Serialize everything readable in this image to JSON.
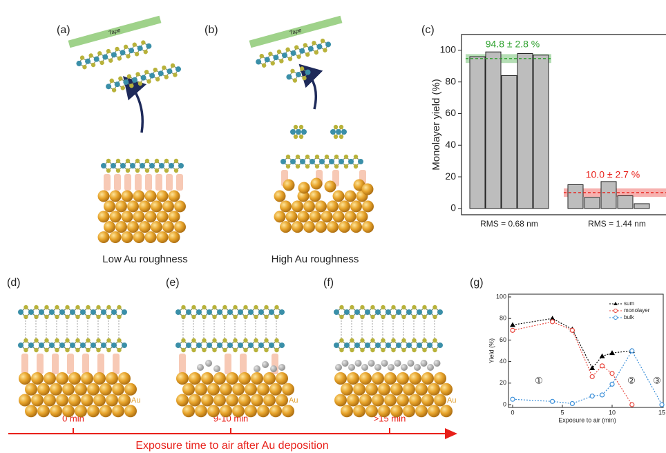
{
  "panel_labels": [
    "(a)",
    "(b)",
    "(c)",
    "(d)",
    "(e)",
    "(f)",
    "(g)"
  ],
  "diagram": {
    "tape": [
      "Tape",
      "Tape"
    ],
    "captions": [
      "Low Au roughness",
      "High Au roughness"
    ],
    "au_labels": [
      "Au",
      "Au",
      "Au"
    ],
    "timeline": {
      "ticks": [
        "0 min",
        "9-10 min",
        ">15 min"
      ],
      "title": "Exposure time to air after Au deposition"
    }
  },
  "chart_data": [
    {
      "type": "bar",
      "ylabel": "Monolayer yield (%)",
      "categories": [
        null,
        null,
        null,
        null,
        null,
        null,
        null,
        null,
        null,
        null
      ],
      "values": [
        96,
        99,
        84,
        98,
        97,
        15,
        7,
        17,
        8,
        3
      ],
      "color": "#bdbdbd",
      "ylim": [
        -4,
        110
      ],
      "yticks": [
        0,
        20,
        40,
        60,
        80,
        100
      ],
      "bands": [
        {
          "label": "94.8 ± 2.8 %",
          "mean": 94.8,
          "sd": 2.8,
          "color": "#2ca02c"
        },
        {
          "label": "10.0 ± 2.7 %",
          "mean": 10.0,
          "sd": 2.7,
          "color": "#e8201a"
        }
      ],
      "group_labels": [
        "RMS = 0.68 nm",
        "RMS = 1.44 nm"
      ]
    },
    {
      "type": "line",
      "xlabel": "Exposure to air (min)",
      "ylabel": "Yield (%)",
      "x": [
        0,
        4,
        6,
        8,
        9,
        10,
        12,
        15
      ],
      "series": [
        {
          "name": "sum",
          "color": "#000000",
          "marker": "triangle",
          "values": [
            74,
            80,
            70,
            34,
            45,
            48,
            50,
            null
          ]
        },
        {
          "name": "monolayer",
          "color": "#e8453c",
          "marker": "circle",
          "values": [
            69,
            77,
            69,
            26,
            36,
            29,
            0,
            null
          ]
        },
        {
          "name": "bulk",
          "color": "#3b8fd9",
          "marker": "circle",
          "values": [
            5,
            3,
            1,
            8,
            9,
            19,
            50,
            0
          ]
        }
      ],
      "xlim": [
        0,
        15
      ],
      "ylim": [
        0,
        100
      ],
      "xticks": [
        0,
        5,
        10,
        15
      ],
      "yticks": [
        0,
        20,
        40,
        60,
        80,
        100
      ],
      "annotations": [
        "①",
        "②",
        "③"
      ]
    }
  ]
}
